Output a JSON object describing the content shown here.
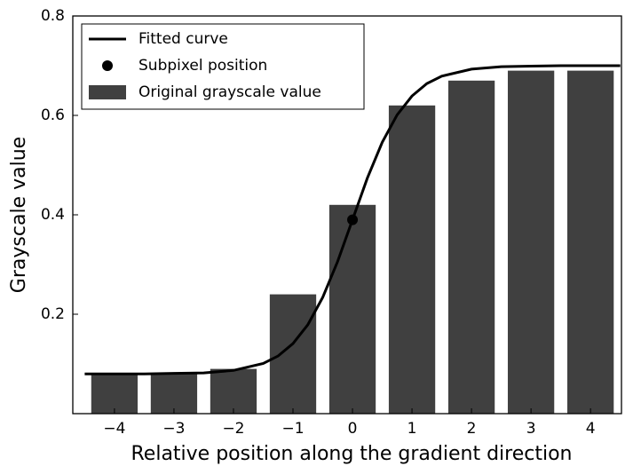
{
  "chart_data": {
    "type": "bar",
    "x_label": "Relative position along the gradient direction",
    "y_label": "Grayscale value",
    "xlim": [
      -4.7,
      4.52
    ],
    "ylim": [
      0,
      0.8
    ],
    "xticks": [
      {
        "value": -4,
        "label": "−4"
      },
      {
        "value": -3,
        "label": "−3"
      },
      {
        "value": -2,
        "label": "−2"
      },
      {
        "value": -1,
        "label": "−1"
      },
      0,
      1,
      2,
      3,
      4
    ],
    "yticks": [
      0.2,
      0.4,
      0.6,
      0.8
    ],
    "legend": "upper left",
    "series": [
      {
        "name": "Original grayscale value",
        "type": "bar",
        "color": "#404040",
        "x": [
          -4,
          -3,
          -2,
          -1,
          0,
          1,
          2,
          3,
          4
        ],
        "values": [
          0.08,
          0.08,
          0.09,
          0.24,
          0.42,
          0.62,
          0.67,
          0.69,
          0.69
        ]
      },
      {
        "name": "Fitted curve",
        "type": "line",
        "color": "#000000",
        "x": [
          -4.5,
          -4,
          -3.5,
          -3,
          -2.5,
          -2,
          -1.5,
          -1.25,
          -1,
          -0.75,
          -0.5,
          -0.25,
          0,
          0.25,
          0.5,
          0.75,
          1,
          1.25,
          1.5,
          2,
          2.5,
          3,
          3.5,
          4,
          4.5
        ],
        "values": [
          0.08,
          0.08,
          0.08,
          0.081,
          0.082,
          0.087,
          0.101,
          0.116,
          0.141,
          0.179,
          0.234,
          0.306,
          0.39,
          0.474,
          0.546,
          0.601,
          0.639,
          0.664,
          0.679,
          0.693,
          0.698,
          0.699,
          0.7,
          0.7,
          0.7
        ]
      },
      {
        "name": "Subpixel position",
        "type": "scatter",
        "color": "#000000",
        "x": [
          0
        ],
        "values": [
          0.39
        ]
      }
    ]
  }
}
